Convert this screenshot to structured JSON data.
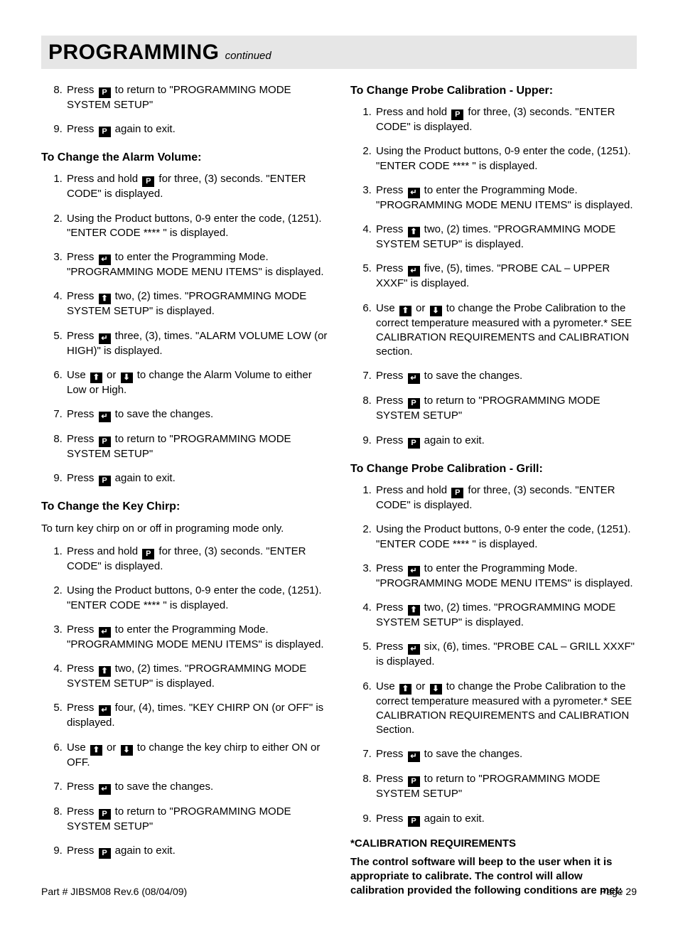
{
  "titleBar": {
    "main": "PROGRAMMING",
    "continued": "continued"
  },
  "icons": {
    "P": "P",
    "enter": "↵",
    "up": "⬆",
    "down": "⬇"
  },
  "leftCol": {
    "topList": {
      "start": 8,
      "items": [
        {
          "pre": "Press ",
          "icon": "P",
          "post": " to return to \"PROGRAMMING MODE SYSTEM SETUP\""
        },
        {
          "pre": "Press ",
          "icon": "P",
          "post": " again to exit."
        }
      ]
    },
    "alarm": {
      "heading": "To Change the Alarm Volume:",
      "items": [
        {
          "pre": "Press and hold ",
          "icon": "P",
          "post": " for three, (3) seconds. \"ENTER CODE\" is displayed."
        },
        {
          "text": "Using the Product buttons, 0-9 enter the code, (1251). \"ENTER CODE **** \" is displayed."
        },
        {
          "pre": "Press ",
          "icon": "enter",
          "post": " to enter the Programming Mode. \"PROGRAMMING MODE MENU ITEMS\" is displayed."
        },
        {
          "pre": "Press ",
          "icon": "up",
          "post": " two, (2) times. \"PROGRAMMING MODE SYSTEM SETUP\" is displayed."
        },
        {
          "pre": "Press ",
          "icon": "enter",
          "post": " three, (3), times. \"ALARM VOLUME LOW (or HIGH)\" is displayed."
        },
        {
          "pre": "Use ",
          "icon": "up",
          "mid": " or ",
          "icon2": "down",
          "post": " to change the Alarm Volume to either Low or High."
        },
        {
          "pre": "Press ",
          "icon": "enter",
          "post": " to save the changes."
        },
        {
          "pre": "Press ",
          "icon": "P",
          "post": " to return to \"PROGRAMMING MODE SYSTEM SETUP\""
        },
        {
          "pre": "Press ",
          "icon": "P",
          "post": " again to exit."
        }
      ]
    },
    "chirp": {
      "heading": "To Change the Key Chirp:",
      "intro": "To turn key chirp on or off in programing mode only.",
      "items": [
        {
          "pre": "Press and hold ",
          "icon": "P",
          "post": " for three, (3) seconds. \"ENTER CODE\" is displayed."
        },
        {
          "text": "Using the Product buttons, 0-9 enter the code, (1251). \"ENTER CODE **** \" is displayed."
        },
        {
          "pre": "Press ",
          "icon": "enter",
          "post": " to enter the Programming Mode. \"PROGRAMMING MODE MENU ITEMS\" is displayed."
        },
        {
          "pre": "Press ",
          "icon": "up",
          "post": " two, (2) times. \"PROGRAMMING MODE SYSTEM SETUP\" is displayed."
        },
        {
          "pre": "Press ",
          "icon": "enter",
          "post": " four, (4), times. \"KEY CHIRP ON (or OFF\" is displayed."
        },
        {
          "pre": "Use ",
          "icon": "up",
          "mid": " or ",
          "icon2": "down",
          "post": " to change the key chirp to either ON or OFF."
        },
        {
          "pre": "Press ",
          "icon": "enter",
          "post": " to save the changes."
        },
        {
          "pre": "Press ",
          "icon": "P",
          "post": " to return to \"PROGRAMMING MODE SYSTEM SETUP\""
        },
        {
          "pre": "Press ",
          "icon": "P",
          "post": " again to exit."
        }
      ]
    }
  },
  "rightCol": {
    "upper": {
      "heading": "To Change Probe Calibration - Upper:",
      "items": [
        {
          "pre": "Press and hold ",
          "icon": "P",
          "post": " for three, (3) seconds. \"ENTER CODE\" is displayed."
        },
        {
          "text": "Using the Product buttons, 0-9 enter the code, (1251). \"ENTER CODE **** \" is displayed."
        },
        {
          "pre": "Press ",
          "icon": "enter",
          "post": " to enter the Programming Mode. \"PROGRAMMING MODE MENU ITEMS\" is displayed."
        },
        {
          "pre": "Press ",
          "icon": "up",
          "post": " two, (2) times. \"PROGRAMMING MODE SYSTEM SETUP\" is displayed."
        },
        {
          "pre": "Press ",
          "icon": "enter",
          "post": " five, (5), times.  \"PROBE CAL – UPPER XXXF\" is displayed."
        },
        {
          "pre": "Use ",
          "icon": "up",
          "mid": " or ",
          "icon2": "down",
          "post": " to change the Probe Calibration to the correct temperature measured with a pyrometer.* SEE CALIBRATION REQUIREMENTS and CALIBRATION section."
        },
        {
          "pre": "Press ",
          "icon": "enter",
          "post": " to save the changes."
        },
        {
          "pre": "Press ",
          "icon": "P",
          "post": " to return to \"PROGRAMMING MODE SYSTEM SETUP\""
        },
        {
          "pre": "Press ",
          "icon": "P",
          "post": " again to exit."
        }
      ]
    },
    "grill": {
      "heading": "To Change Probe Calibration - Grill:",
      "items": [
        {
          "pre": "Press and hold ",
          "icon": "P",
          "post": " for three, (3) seconds. \"ENTER CODE\" is displayed."
        },
        {
          "text": "Using the Product buttons, 0-9 enter the code, (1251). \"ENTER CODE **** \" is displayed."
        },
        {
          "pre": "Press ",
          "icon": "enter",
          "post": " to enter the Programming Mode. \"PROGRAMMING MODE MENU ITEMS\" is displayed."
        },
        {
          "pre": "Press ",
          "icon": "up",
          "post": " two, (2) times. \"PROGRAMMING MODE SYSTEM SETUP\" is displayed."
        },
        {
          "pre": "Press ",
          "icon": "enter",
          "post": " six, (6), times.  \"PROBE CAL – GRILL XXXF\" is displayed."
        },
        {
          "pre": "Use ",
          "icon": "up",
          "mid": " or ",
          "icon2": "down",
          "post": " to change the Probe Calibration to the correct temperature measured with a pyrometer.* SEE CALIBRATION REQUIREMENTS and CALIBRATION Section."
        },
        {
          "pre": "Press ",
          "icon": "enter",
          "post": " to save the changes."
        },
        {
          "pre": "Press ",
          "icon": "P",
          "post": " to return to \"PROGRAMMING MODE SYSTEM SETUP\""
        },
        {
          "pre": "Press ",
          "icon": "P",
          "post": " again to exit."
        }
      ]
    },
    "note1": "*CALIBRATION REQUIREMENTS",
    "note2": "The control software will beep to the user when it is appropriate to calibrate. The control will allow calibration provided the following conditions are met:"
  },
  "footer": {
    "left": "Part # JIBSM08 Rev.6 (08/04/09)",
    "right": "Page 29"
  }
}
